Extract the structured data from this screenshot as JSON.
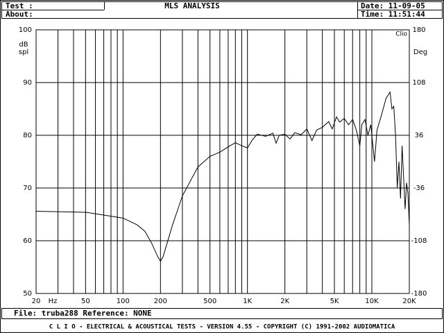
{
  "header": {
    "test_label": "Test :",
    "about_label": "About:",
    "date": "Date: 11-09-05",
    "time": "Time: 11:51:44"
  },
  "footer": {
    "file": "File: truba288 Reference: NONE",
    "copyright": "C L I O  -  ELECTRICAL & ACOUSTICAL TESTS  -  VERSION 4.55  -  COPYRIGHT (C) 1991-2002 AUDIOMATICA"
  },
  "chart_data": {
    "type": "line",
    "title": "MLS ANALYSIS",
    "watermark": "Clio",
    "ylabel": [
      "dB",
      "spl"
    ],
    "y2label": "Deg",
    "xlabel": "Hz",
    "xscale": "log",
    "grid": true,
    "xlim": [
      20,
      20000
    ],
    "xticks": [
      20,
      50,
      100,
      200,
      500,
      {
        "value": 1000,
        "label": "1K"
      },
      {
        "value": 2000,
        "label": "2K"
      },
      {
        "value": 5000,
        "label": "5K"
      },
      {
        "value": 10000,
        "label": "10K"
      },
      {
        "value": 20000,
        "label": "20K"
      }
    ],
    "x_grid": [
      30,
      40,
      60,
      70,
      80,
      90,
      300,
      400,
      600,
      700,
      800,
      900,
      3000,
      4000,
      6000,
      7000,
      8000,
      9000
    ],
    "ylim": [
      50,
      100
    ],
    "yticks": [
      50,
      60,
      70,
      80,
      90,
      100
    ],
    "y2lim": [
      -180,
      180
    ],
    "y2ticks": [
      -180,
      -108,
      -36,
      36,
      108,
      180
    ],
    "x": [
      20,
      50,
      100,
      130,
      150,
      170,
      190,
      200,
      210,
      250,
      300,
      400,
      500,
      600,
      700,
      800,
      900,
      1000,
      1100,
      1200,
      1400,
      1600,
      1700,
      1800,
      2000,
      2200,
      2400,
      2700,
      3000,
      3300,
      3600,
      4000,
      4500,
      4800,
      5200,
      5500,
      6000,
      6500,
      7000,
      7500,
      8000,
      8300,
      8800,
      9300,
      9800,
      10500,
      11000,
      12000,
      13000,
      14000,
      14500,
      15000,
      15500,
      16000,
      16500,
      17000,
      17500,
      18000,
      18500,
      19000,
      19500,
      20000
    ],
    "series": [
      {
        "color": "#000000",
        "values": [
          65.6,
          65.4,
          64.3,
          63,
          61.8,
          59.5,
          57,
          56.1,
          57,
          63,
          68.5,
          74,
          76,
          76.8,
          77.8,
          78.6,
          78,
          77.6,
          79.2,
          80.2,
          79.8,
          80.4,
          78.5,
          80,
          80.2,
          79.3,
          80.5,
          80.1,
          81.2,
          79,
          81,
          81.5,
          82.6,
          81.2,
          83.5,
          82.5,
          83.2,
          82,
          83,
          81,
          78,
          82,
          83,
          80,
          82,
          75,
          81,
          84,
          87,
          88.2,
          85,
          85.5,
          80,
          70,
          75,
          68,
          78,
          72,
          66,
          71,
          69,
          63
        ]
      }
    ]
  }
}
